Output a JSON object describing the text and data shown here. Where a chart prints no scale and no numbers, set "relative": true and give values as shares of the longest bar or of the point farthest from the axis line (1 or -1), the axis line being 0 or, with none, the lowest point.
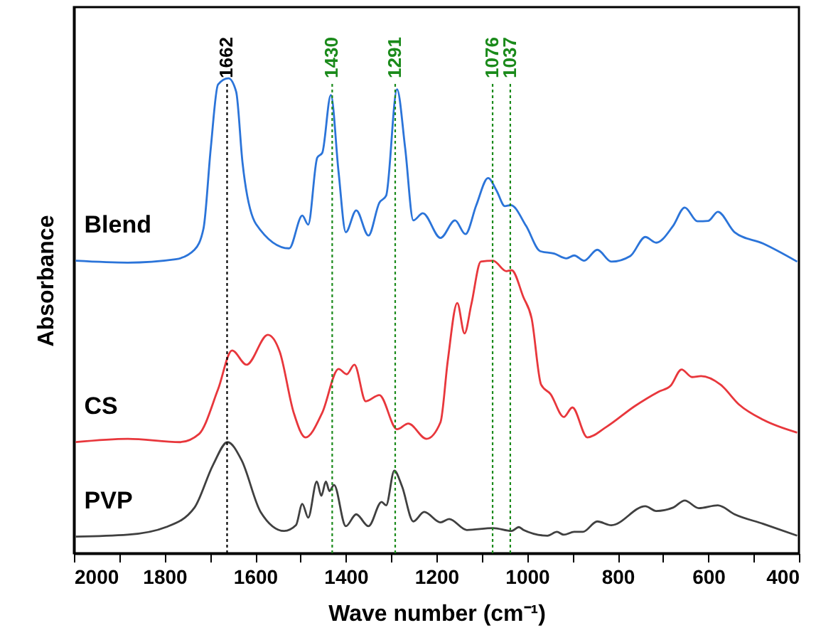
{
  "chart_data": {
    "type": "line",
    "xlabel": "Wave number (cm⁻¹)",
    "ylabel": "Absorbance",
    "relative": true,
    "grid": false,
    "marker": "none",
    "line_style": "solid",
    "xlim": [
      2000,
      400
    ],
    "xticks": [
      2000,
      {
        "value": 1900,
        "label": null
      },
      1800,
      {
        "value": 1700,
        "label": null
      },
      1600,
      {
        "value": 1500,
        "label": null
      },
      1400,
      {
        "value": 1300,
        "label": null
      },
      1200,
      {
        "value": 1100,
        "label": null
      },
      1000,
      {
        "value": 900,
        "label": null
      },
      800,
      {
        "value": 700,
        "label": null
      },
      600,
      {
        "value": 500,
        "label": null
      },
      400
    ],
    "series": [
      {
        "name": "Blend",
        "color": "#2b74d9",
        "x": [
          1996,
          1881,
          1776,
          1734,
          1714,
          1698,
          1682,
          1659,
          1642,
          1628,
          1598,
          1525,
          1496,
          1483,
          1463,
          1452,
          1433,
          1416,
          1400,
          1377,
          1350,
          1326,
          1311,
          1287,
          1269,
          1251,
          1230,
          1191,
          1159,
          1136,
          1112,
          1086,
          1067,
          1049,
          1036,
          1002,
          971,
          940,
          913,
          896,
          874,
          845,
          814,
          772,
          739,
          715,
          678,
          652,
          624,
          600,
          579,
          542,
          479,
          404
        ],
        "values": [
          0.616,
          0.612,
          0.619,
          0.639,
          0.684,
          0.853,
          0.987,
          1.0,
          0.972,
          0.823,
          0.693,
          0.642,
          0.711,
          0.692,
          0.833,
          0.843,
          0.965,
          0.803,
          0.676,
          0.722,
          0.669,
          0.738,
          0.753,
          0.977,
          0.853,
          0.701,
          0.716,
          0.664,
          0.701,
          0.672,
          0.733,
          0.79,
          0.763,
          0.731,
          0.733,
          0.689,
          0.636,
          0.631,
          0.621,
          0.627,
          0.616,
          0.639,
          0.614,
          0.626,
          0.666,
          0.654,
          0.689,
          0.728,
          0.699,
          0.7,
          0.719,
          0.676,
          0.652,
          0.614
        ]
      },
      {
        "name": "CS",
        "color": "#e8373c",
        "x": [
          1996,
          1881,
          1766,
          1724,
          1682,
          1651,
          1619,
          1572,
          1546,
          1515,
          1489,
          1452,
          1416,
          1398,
          1381,
          1356,
          1326,
          1287,
          1262,
          1222,
          1191,
          1175,
          1154,
          1138,
          1123,
          1102,
          1075,
          1046,
          1034,
          1008,
          990,
          969,
          948,
          919,
          900,
          867,
          825,
          762,
          710,
          683,
          659,
          636,
          616,
          573,
          532,
          479,
          404
        ],
        "values": [
          0.234,
          0.241,
          0.234,
          0.251,
          0.345,
          0.427,
          0.397,
          0.46,
          0.425,
          0.296,
          0.244,
          0.296,
          0.388,
          0.377,
          0.397,
          0.32,
          0.333,
          0.261,
          0.273,
          0.241,
          0.276,
          0.405,
          0.527,
          0.463,
          0.524,
          0.614,
          0.616,
          0.594,
          0.596,
          0.539,
          0.495,
          0.355,
          0.335,
          0.287,
          0.307,
          0.244,
          0.266,
          0.31,
          0.34,
          0.353,
          0.387,
          0.371,
          0.373,
          0.355,
          0.313,
          0.281,
          0.254
        ]
      },
      {
        "name": "PVP",
        "color": "#404040",
        "x": [
          1996,
          1881,
          1797,
          1734,
          1693,
          1661,
          1630,
          1588,
          1536,
          1510,
          1496,
          1483,
          1464,
          1454,
          1444,
          1436,
          1426,
          1400,
          1377,
          1350,
          1321,
          1311,
          1293,
          1276,
          1251,
          1227,
          1191,
          1172,
          1133,
          1075,
          1034,
          1018,
          1008,
          955,
          934,
          919,
          896,
          877,
          845,
          814,
          739,
          715,
          678,
          652,
          621,
          579,
          542,
          479,
          404
        ],
        "values": [
          0.035,
          0.039,
          0.055,
          0.096,
          0.186,
          0.234,
          0.196,
          0.087,
          0.047,
          0.059,
          0.104,
          0.075,
          0.151,
          0.121,
          0.151,
          0.131,
          0.144,
          0.057,
          0.082,
          0.057,
          0.108,
          0.101,
          0.174,
          0.141,
          0.067,
          0.087,
          0.065,
          0.072,
          0.049,
          0.053,
          0.047,
          0.055,
          0.049,
          0.037,
          0.045,
          0.039,
          0.045,
          0.045,
          0.067,
          0.059,
          0.099,
          0.089,
          0.096,
          0.111,
          0.095,
          0.101,
          0.082,
          0.062,
          0.037
        ]
      }
    ],
    "ref_lines": [
      {
        "axis": "x",
        "value": 1662,
        "label": "1662",
        "color": "#000000",
        "line_style": "dotted"
      },
      {
        "axis": "x",
        "value": 1430,
        "label": "1430",
        "color": "#1a8a1a",
        "line_style": "dotted"
      },
      {
        "axis": "x",
        "value": 1291,
        "label": "1291",
        "color": "#1a8a1a",
        "line_style": "dotted"
      },
      {
        "axis": "x",
        "value": 1076,
        "label": "1076",
        "color": "#1a8a1a",
        "line_style": "dotted"
      },
      {
        "axis": "x",
        "value": 1037,
        "label": "1037",
        "color": "#1a8a1a",
        "line_style": "dotted"
      }
    ]
  }
}
